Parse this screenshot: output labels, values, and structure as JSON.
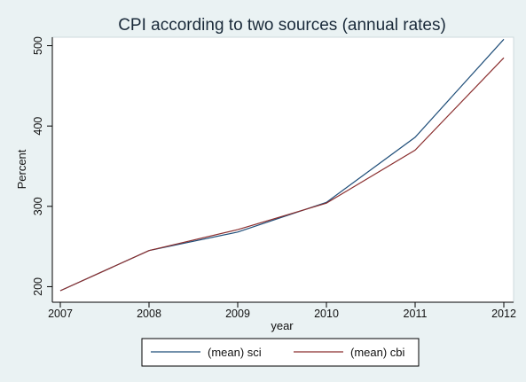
{
  "chart_data": {
    "type": "line",
    "title": "CPI according to two sources (annual rates)",
    "xlabel": "year",
    "ylabel": "Percent",
    "x": [
      2007,
      2008,
      2009,
      2010,
      2011,
      2012
    ],
    "xlim": [
      2007,
      2012
    ],
    "ylim": [
      190,
      510
    ],
    "xticks": [
      "2007",
      "2008",
      "2009",
      "2010",
      "2011",
      "2012"
    ],
    "yticks": [
      "200",
      "300",
      "400",
      "500"
    ],
    "grid": false,
    "legend_position": "bottom",
    "series": [
      {
        "name": "(mean) sci",
        "color": "#1f4e79",
        "values": [
          195,
          245,
          268,
          305,
          386,
          508
        ]
      },
      {
        "name": "(mean) cbi",
        "color": "#8b2f2f",
        "values": [
          195,
          245,
          271,
          304,
          370,
          485
        ]
      }
    ]
  }
}
